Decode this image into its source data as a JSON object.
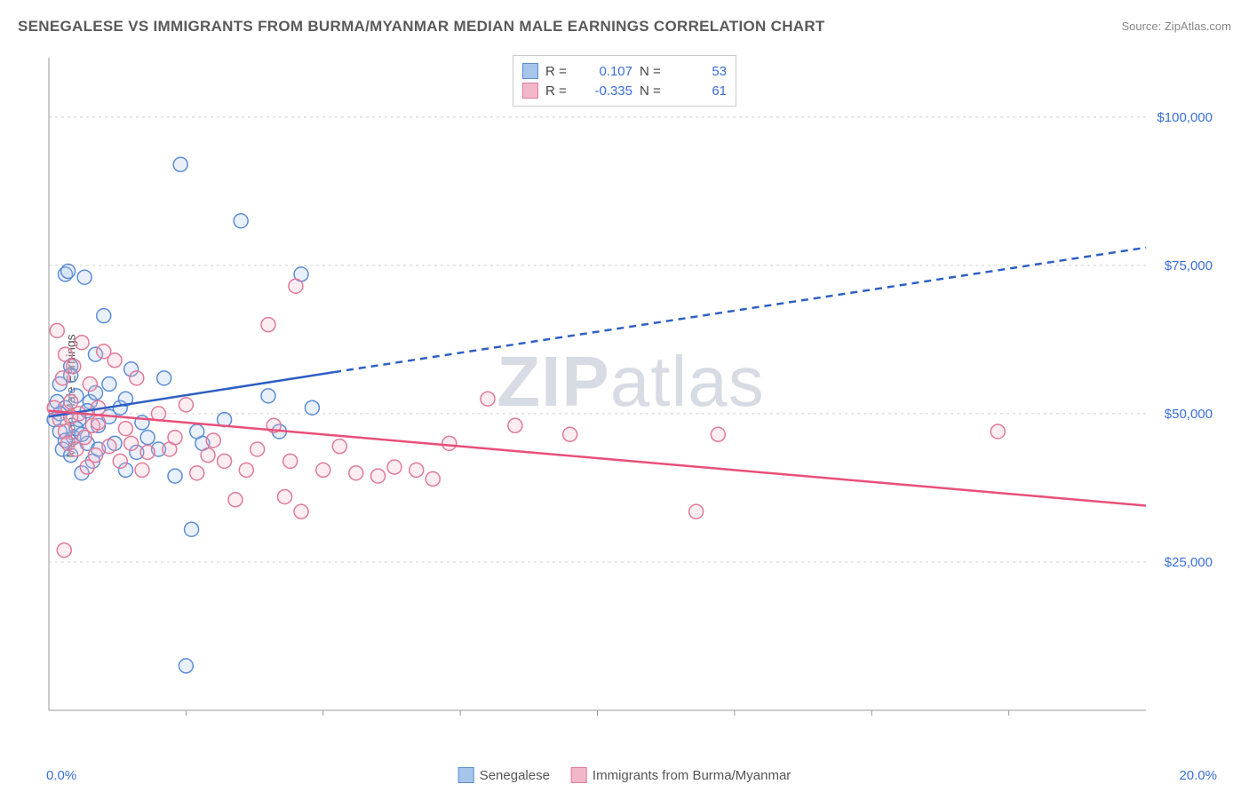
{
  "title": "SENEGALESE VS IMMIGRANTS FROM BURMA/MYANMAR MEDIAN MALE EARNINGS CORRELATION CHART",
  "source_label": "Source: ",
  "source_value": "ZipAtlas.com",
  "y_axis_label": "Median Male Earnings",
  "watermark_bold": "ZIP",
  "watermark_rest": "atlas",
  "chart": {
    "type": "scatter",
    "xlim": [
      0,
      20
    ],
    "ylim": [
      0,
      110000
    ],
    "x_tick_start": 0,
    "x_tick_end": 20,
    "y_ticks": [
      25000,
      50000,
      75000,
      100000
    ],
    "y_tick_labels": [
      "$25,000",
      "$50,000",
      "$75,000",
      "$100,000"
    ],
    "x_tick_labels": {
      "start": "0.0%",
      "end": "20.0%"
    },
    "x_minor_ticks": [
      2.5,
      5.0,
      7.5,
      10.0,
      12.5,
      15.0,
      17.5
    ],
    "grid_color": "#d0d0d0",
    "axis_color": "#999999",
    "background_color": "#ffffff",
    "tick_label_color": "#3a6fd8",
    "tick_label_fontsize": 15,
    "marker_radius": 8,
    "marker_stroke_width": 1.5,
    "marker_fill_opacity": 0.25,
    "series": [
      {
        "name": "Senegalese",
        "color_stroke": "#5b8dd6",
        "color_fill": "#a7c4ea",
        "r_value": "0.107",
        "n_value": "53",
        "trend": {
          "x1": 0,
          "y1": 49500,
          "x2": 5.2,
          "y2": 57000,
          "x2_dash": 20,
          "y2_dash": 78000,
          "color": "#2e5fc4",
          "width": 2.5
        },
        "points": [
          [
            0.1,
            49000
          ],
          [
            0.15,
            52000
          ],
          [
            0.2,
            47000
          ],
          [
            0.2,
            55000
          ],
          [
            0.25,
            44000
          ],
          [
            0.3,
            73500
          ],
          [
            0.3,
            51000
          ],
          [
            0.35,
            74000
          ],
          [
            0.4,
            43000
          ],
          [
            0.4,
            58000
          ],
          [
            0.45,
            46000
          ],
          [
            0.5,
            53000
          ],
          [
            0.55,
            49000
          ],
          [
            0.6,
            40000
          ],
          [
            0.65,
            73000
          ],
          [
            0.7,
            45000
          ],
          [
            0.75,
            52000
          ],
          [
            0.8,
            42000
          ],
          [
            0.85,
            60000
          ],
          [
            0.9,
            48000
          ],
          [
            1.0,
            66500
          ],
          [
            1.1,
            55000
          ],
          [
            1.2,
            45000
          ],
          [
            1.3,
            51000
          ],
          [
            1.4,
            40500
          ],
          [
            1.5,
            57500
          ],
          [
            1.6,
            43500
          ],
          [
            1.7,
            48500
          ],
          [
            1.8,
            46000
          ],
          [
            2.0,
            44000
          ],
          [
            2.1,
            56000
          ],
          [
            2.3,
            39500
          ],
          [
            2.4,
            92000
          ],
          [
            2.5,
            7500
          ],
          [
            2.6,
            30500
          ],
          [
            2.7,
            47000
          ],
          [
            2.8,
            45000
          ],
          [
            3.2,
            49000
          ],
          [
            3.5,
            82500
          ],
          [
            4.0,
            53000
          ],
          [
            4.2,
            47000
          ],
          [
            4.6,
            73500
          ],
          [
            4.8,
            51000
          ],
          [
            0.3,
            45500
          ],
          [
            0.5,
            47500
          ],
          [
            0.9,
            44000
          ],
          [
            1.1,
            49500
          ],
          [
            0.7,
            50500
          ],
          [
            0.85,
            53500
          ],
          [
            0.4,
            56500
          ],
          [
            0.6,
            46500
          ],
          [
            1.4,
            52500
          ],
          [
            0.2,
            50000
          ]
        ]
      },
      {
        "name": "Immigrants from Burma/Myanmar",
        "color_stroke": "#e07a9a",
        "color_fill": "#f2b8c9",
        "r_value": "-0.335",
        "n_value": "61",
        "trend": {
          "x1": 0,
          "y1": 50500,
          "x2": 20,
          "y2": 34500,
          "color": "#e94f7a",
          "width": 2.5
        },
        "points": [
          [
            0.1,
            51000
          ],
          [
            0.15,
            64000
          ],
          [
            0.2,
            49000
          ],
          [
            0.25,
            56000
          ],
          [
            0.3,
            47000
          ],
          [
            0.3,
            60000
          ],
          [
            0.35,
            45000
          ],
          [
            0.4,
            52000
          ],
          [
            0.45,
            58000
          ],
          [
            0.5,
            44000
          ],
          [
            0.55,
            50000
          ],
          [
            0.6,
            62000
          ],
          [
            0.65,
            46000
          ],
          [
            0.7,
            41000
          ],
          [
            0.75,
            55000
          ],
          [
            0.8,
            48000
          ],
          [
            0.85,
            43000
          ],
          [
            0.9,
            51000
          ],
          [
            1.0,
            60500
          ],
          [
            1.1,
            44500
          ],
          [
            1.2,
            59000
          ],
          [
            1.3,
            42000
          ],
          [
            1.4,
            47500
          ],
          [
            1.5,
            45000
          ],
          [
            1.7,
            40500
          ],
          [
            1.8,
            43500
          ],
          [
            2.0,
            50000
          ],
          [
            2.2,
            44000
          ],
          [
            2.3,
            46000
          ],
          [
            2.5,
            51500
          ],
          [
            2.7,
            40000
          ],
          [
            2.9,
            43000
          ],
          [
            3.0,
            45500
          ],
          [
            3.2,
            42000
          ],
          [
            3.4,
            35500
          ],
          [
            3.6,
            40500
          ],
          [
            3.8,
            44000
          ],
          [
            4.0,
            65000
          ],
          [
            4.1,
            48000
          ],
          [
            4.3,
            36000
          ],
          [
            4.4,
            42000
          ],
          [
            4.5,
            71500
          ],
          [
            4.6,
            33500
          ],
          [
            5.0,
            40500
          ],
          [
            5.3,
            44500
          ],
          [
            5.6,
            40000
          ],
          [
            6.0,
            39500
          ],
          [
            6.3,
            41000
          ],
          [
            6.7,
            40500
          ],
          [
            7.0,
            39000
          ],
          [
            7.3,
            45000
          ],
          [
            8.0,
            52500
          ],
          [
            8.5,
            48000
          ],
          [
            9.5,
            46500
          ],
          [
            11.8,
            33500
          ],
          [
            12.2,
            46500
          ],
          [
            17.3,
            47000
          ],
          [
            0.4,
            49500
          ],
          [
            0.9,
            48500
          ],
          [
            1.6,
            56000
          ],
          [
            0.28,
            27000
          ]
        ]
      }
    ]
  },
  "legend_top": {
    "r_label": "R =",
    "n_label": "N ="
  },
  "legend_bottom": {
    "items": [
      "Senegalese",
      "Immigrants from Burma/Myanmar"
    ]
  }
}
